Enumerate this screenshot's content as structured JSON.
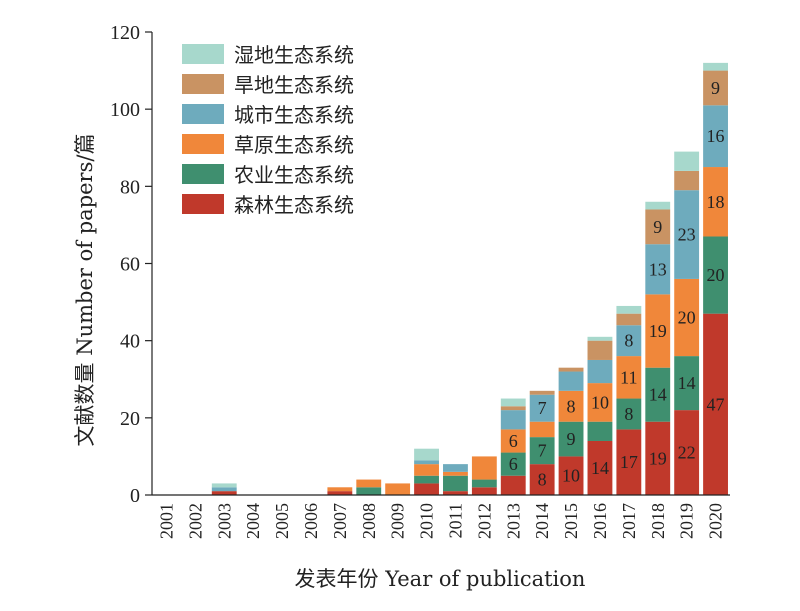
{
  "chart_data": {
    "type": "bar",
    "stacked": true,
    "xlabel": "发表年份  Year of publication",
    "ylabel": "文献数量 Number of papers/篇",
    "ylim": [
      0,
      120
    ],
    "yticks": [
      0,
      20,
      40,
      60,
      80,
      100,
      120
    ],
    "legend_position": "top-left",
    "categories": [
      "2001",
      "2002",
      "2003",
      "2004",
      "2005",
      "2006",
      "2007",
      "2008",
      "2009",
      "2010",
      "2011",
      "2012",
      "2013",
      "2014",
      "2015",
      "2016",
      "2017",
      "2018",
      "2019",
      "2020"
    ],
    "series": [
      {
        "name": "森林生态系统",
        "color": "#c0392b",
        "values": [
          0,
          0,
          1,
          0,
          0,
          0,
          1,
          0,
          0,
          3,
          1,
          2,
          5,
          8,
          10,
          14,
          17,
          19,
          22,
          47
        ]
      },
      {
        "name": "农业生态系统",
        "color": "#3f8f6f",
        "values": [
          0,
          0,
          0,
          0,
          0,
          0,
          0,
          2,
          0,
          2,
          4,
          2,
          6,
          7,
          9,
          5,
          8,
          14,
          14,
          20
        ]
      },
      {
        "name": "草原生态系统",
        "color": "#f0873a",
        "values": [
          0,
          0,
          0,
          0,
          0,
          0,
          1,
          2,
          3,
          3,
          1,
          6,
          6,
          4,
          8,
          10,
          11,
          19,
          20,
          18
        ]
      },
      {
        "name": "城市生态系统",
        "color": "#6eabbd",
        "values": [
          0,
          0,
          1,
          0,
          0,
          0,
          0,
          0,
          0,
          1,
          2,
          0,
          5,
          7,
          5,
          6,
          8,
          13,
          23,
          16
        ]
      },
      {
        "name": "旱地生态系统",
        "color": "#c99363",
        "values": [
          0,
          0,
          0,
          0,
          0,
          0,
          0,
          0,
          0,
          0,
          0,
          0,
          1,
          1,
          1,
          5,
          3,
          9,
          5,
          9
        ]
      },
      {
        "name": "湿地生态系统",
        "color": "#a7d8cc",
        "values": [
          0,
          0,
          1,
          0,
          0,
          0,
          0,
          0,
          0,
          3,
          0,
          0,
          2,
          0,
          0,
          1,
          2,
          2,
          5,
          2
        ]
      }
    ],
    "data_labels": [
      {
        "category": "2013",
        "series": "农业生态系统",
        "text": "6"
      },
      {
        "category": "2013",
        "series": "草原生态系统",
        "text": "6"
      },
      {
        "category": "2014",
        "series": "森林生态系统",
        "text": "8"
      },
      {
        "category": "2014",
        "series": "农业生态系统",
        "text": "7"
      },
      {
        "category": "2014",
        "series": "城市生态系统",
        "text": "7"
      },
      {
        "category": "2015",
        "series": "森林生态系统",
        "text": "10"
      },
      {
        "category": "2015",
        "series": "农业生态系统",
        "text": "9"
      },
      {
        "category": "2015",
        "series": "草原生态系统",
        "text": "8"
      },
      {
        "category": "2016",
        "series": "森林生态系统",
        "text": "14"
      },
      {
        "category": "2016",
        "series": "草原生态系统",
        "text": "10"
      },
      {
        "category": "2017",
        "series": "森林生态系统",
        "text": "17"
      },
      {
        "category": "2017",
        "series": "农业生态系统",
        "text": "8"
      },
      {
        "category": "2017",
        "series": "草原生态系统",
        "text": "11"
      },
      {
        "category": "2017",
        "series": "城市生态系统",
        "text": "8"
      },
      {
        "category": "2018",
        "series": "森林生态系统",
        "text": "19"
      },
      {
        "category": "2018",
        "series": "农业生态系统",
        "text": "14"
      },
      {
        "category": "2018",
        "series": "草原生态系统",
        "text": "19"
      },
      {
        "category": "2018",
        "series": "城市生态系统",
        "text": "13"
      },
      {
        "category": "2018",
        "series": "旱地生态系统",
        "text": "9"
      },
      {
        "category": "2019",
        "series": "森林生态系统",
        "text": "22"
      },
      {
        "category": "2019",
        "series": "农业生态系统",
        "text": "14"
      },
      {
        "category": "2019",
        "series": "草原生态系统",
        "text": "20"
      },
      {
        "category": "2019",
        "series": "城市生态系统",
        "text": "23"
      },
      {
        "category": "2020",
        "series": "森林生态系统",
        "text": "47"
      },
      {
        "category": "2020",
        "series": "农业生态系统",
        "text": "20"
      },
      {
        "category": "2020",
        "series": "草原生态系统",
        "text": "18"
      },
      {
        "category": "2020",
        "series": "城市生态系统",
        "text": "16"
      },
      {
        "category": "2020",
        "series": "旱地生态系统",
        "text": "9"
      }
    ]
  }
}
